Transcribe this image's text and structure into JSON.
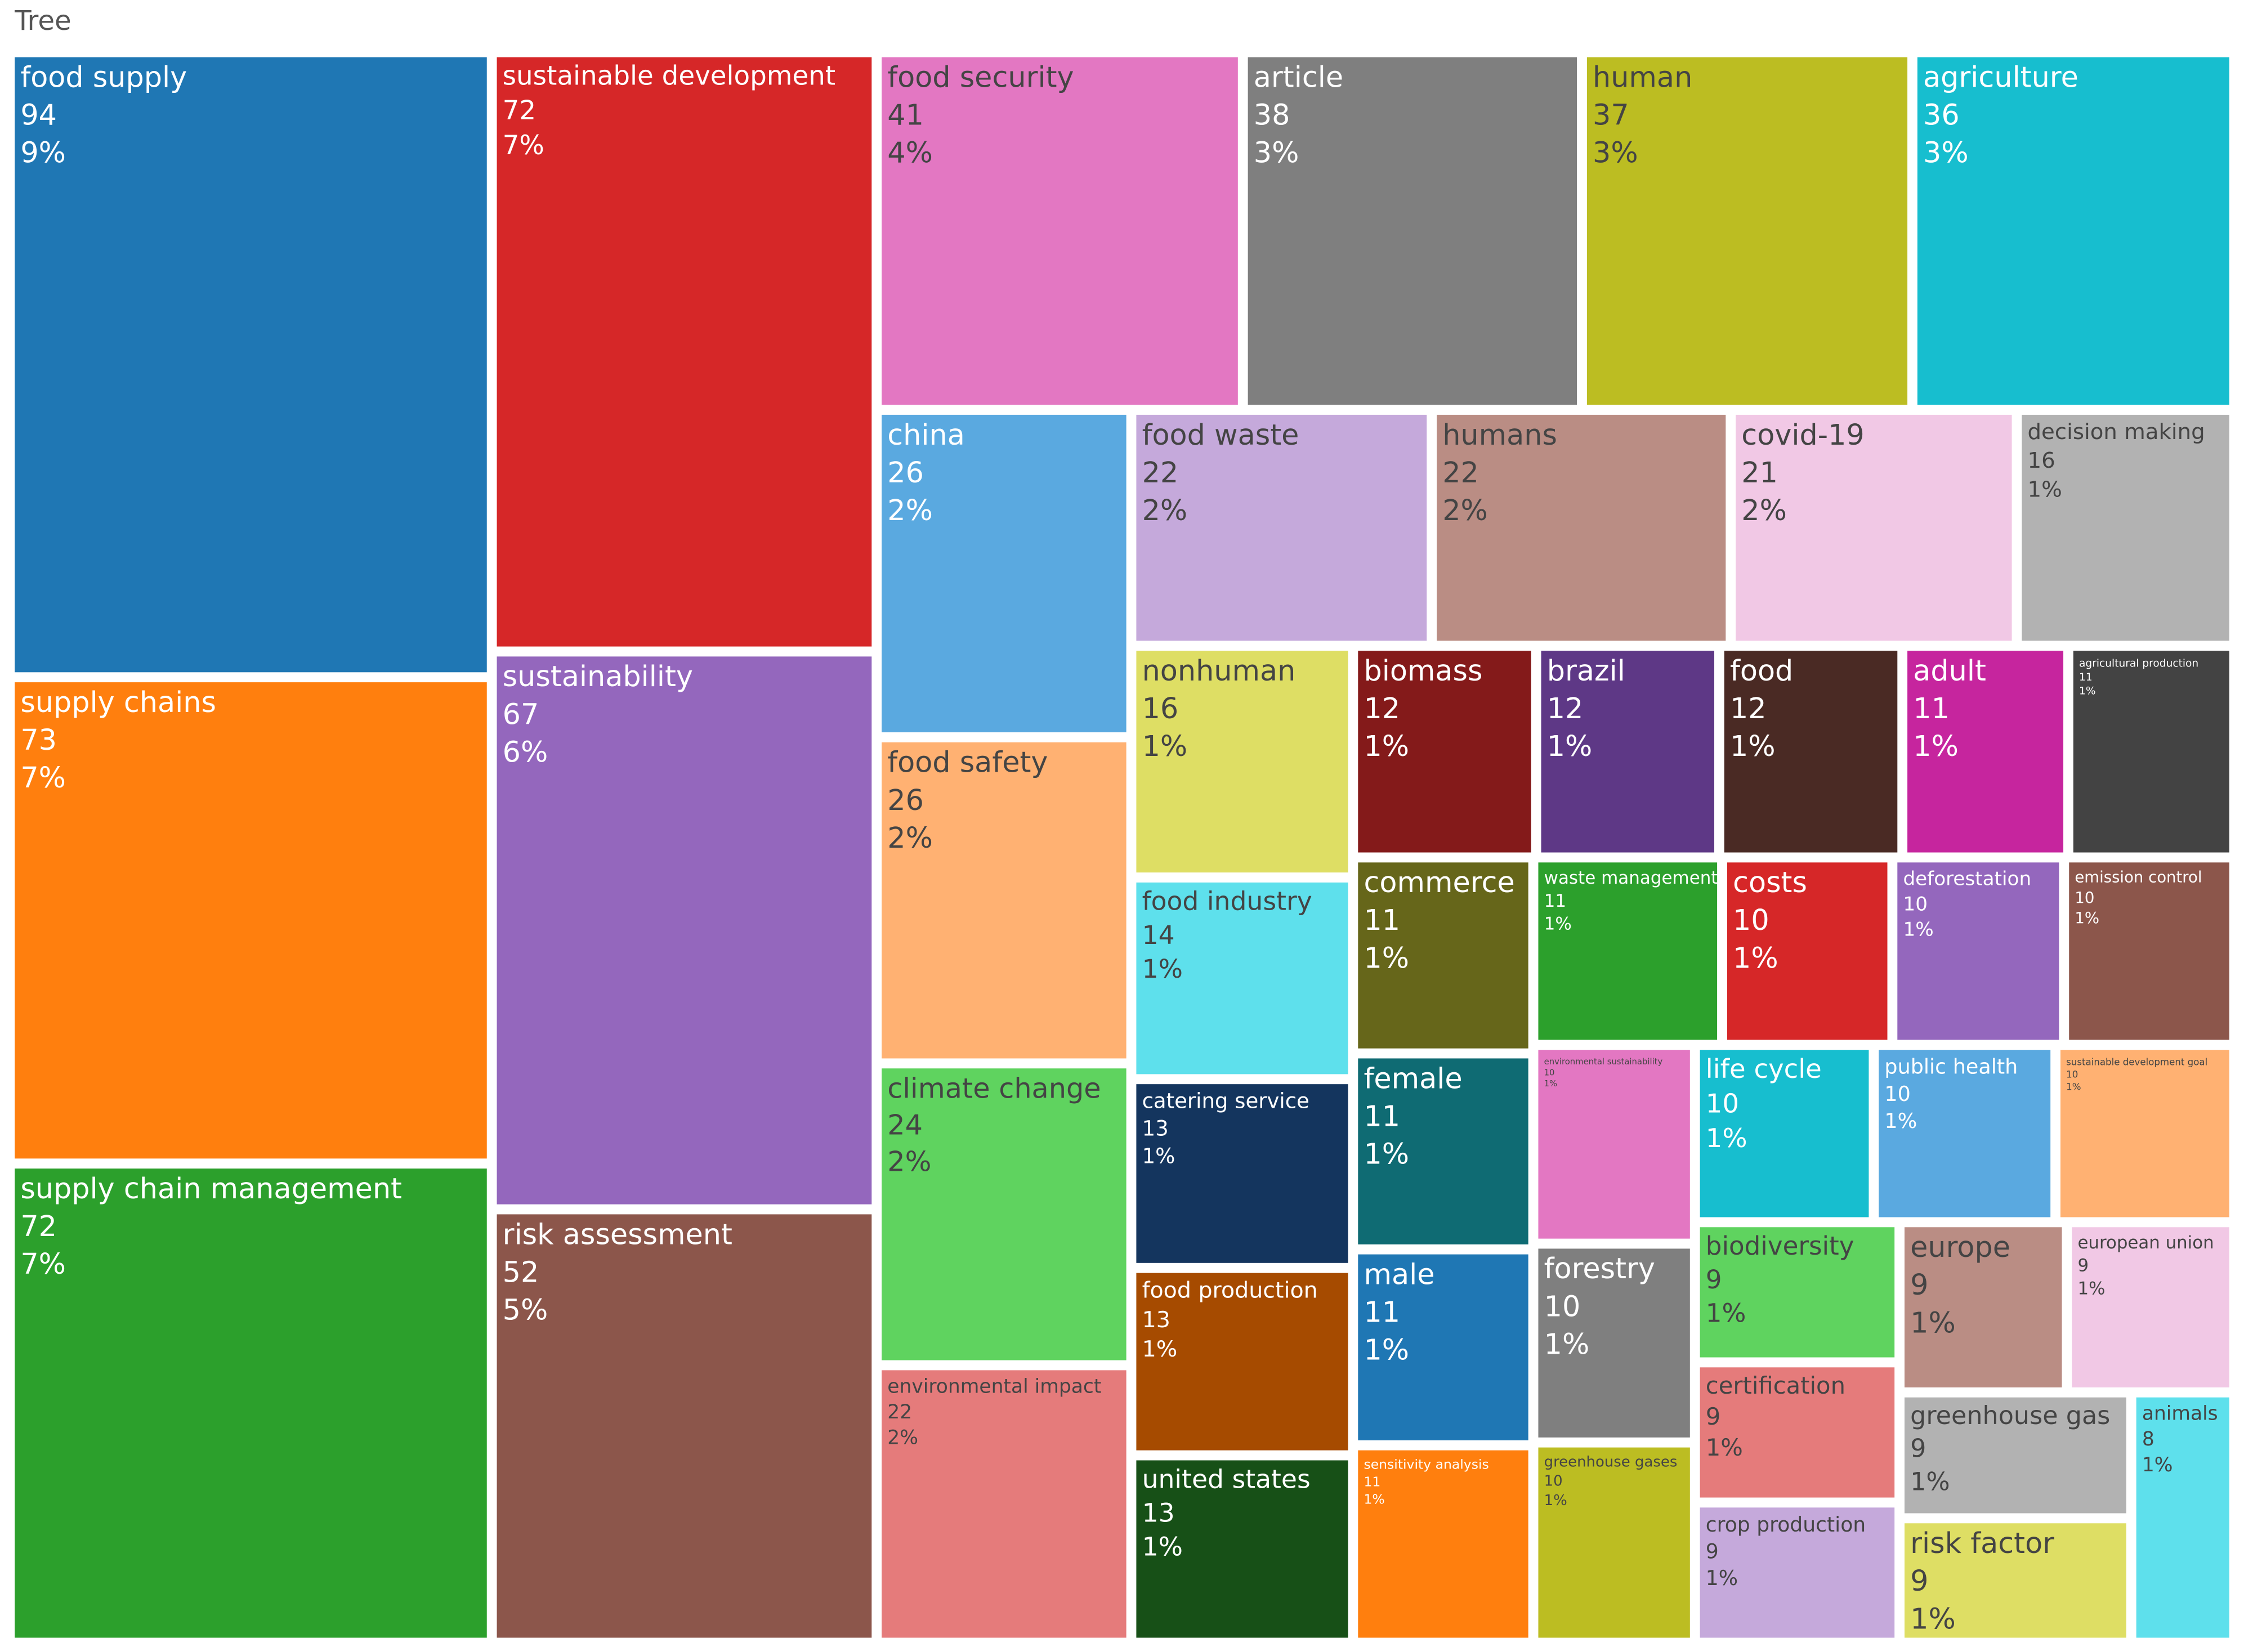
{
  "chart_data": {
    "type": "treemap",
    "title": "Tree",
    "labels": [
      "food supply",
      "supply chains",
      "supply chain management",
      "sustainable development",
      "sustainability",
      "risk assessment",
      "food security",
      "article",
      "human",
      "agriculture",
      "china",
      "food safety",
      "climate change",
      "environmental impact",
      "food waste",
      "humans",
      "covid-19",
      "decision making",
      "nonhuman",
      "food industry",
      "catering service",
      "food production",
      "united states",
      "biomass",
      "brazil",
      "food",
      "adult",
      "agricultural production",
      "commerce",
      "female",
      "male",
      "sensitivity analysis",
      "waste management",
      "costs",
      "deforestation",
      "emission control",
      "environmental sustainability",
      "forestry",
      "greenhouse gases",
      "life cycle",
      "public health",
      "sustainable development goal",
      "biodiversity",
      "certification",
      "crop production",
      "europe",
      "european union",
      "greenhouse gas",
      "risk factor",
      "animals"
    ],
    "values": [
      94,
      73,
      72,
      72,
      67,
      52,
      41,
      38,
      37,
      36,
      26,
      26,
      24,
      22,
      22,
      22,
      21,
      16,
      16,
      14,
      13,
      13,
      13,
      12,
      12,
      12,
      11,
      11,
      11,
      11,
      11,
      11,
      11,
      10,
      10,
      10,
      10,
      10,
      10,
      10,
      10,
      10,
      9,
      9,
      9,
      9,
      9,
      9,
      9,
      8
    ],
    "percent_labels": [
      "9%",
      "7%",
      "7%",
      "7%",
      "6%",
      "5%",
      "4%",
      "3%",
      "3%",
      "3%",
      "2%",
      "2%",
      "2%",
      "2%",
      "2%",
      "2%",
      "2%",
      "1%",
      "1%",
      "1%",
      "1%",
      "1%",
      "1%",
      "1%",
      "1%",
      "1%",
      "1%",
      "1%",
      "1%",
      "1%",
      "1%",
      "1%",
      "1%",
      "1%",
      "1%",
      "1%",
      "1%",
      "1%",
      "1%",
      "1%",
      "1%",
      "1%",
      "1%",
      "1%",
      "1%",
      "1%",
      "1%",
      "1%",
      "1%",
      "1%"
    ],
    "colors": [
      "#1f77b4",
      "#ff7f0e",
      "#2ca02c",
      "#d62728",
      "#9467bd",
      "#8c564b",
      "#e377c2",
      "#7f7f7f",
      "#bcbd22",
      "#17becf",
      "#5aa9e0",
      "#ffb172",
      "#5fd35f",
      "#e57b7b",
      "#c5a9db",
      "#ba8d84",
      "#f1c8e5",
      "#b2b2b2",
      "#dede64",
      "#5ee0ec",
      "#14355e",
      "#a64b00",
      "#175017",
      "#841a1a",
      "#5e3886",
      "#4a2a24",
      "#c6259e",
      "#434343",
      "#66661a",
      "#0f6b73",
      "#1f77b4",
      "#ff7f0e",
      "#2ca02c",
      "#d62728",
      "#9467bd",
      "#8c564b",
      "#e377c2",
      "#7f7f7f",
      "#bcbd22",
      "#17becf",
      "#5aa9e0",
      "#ffb172",
      "#5fd35f",
      "#e57b7b",
      "#c5a9db",
      "#ba8d84",
      "#f1c8e5",
      "#b2b2b2",
      "#dede64",
      "#5ee0ec"
    ]
  }
}
